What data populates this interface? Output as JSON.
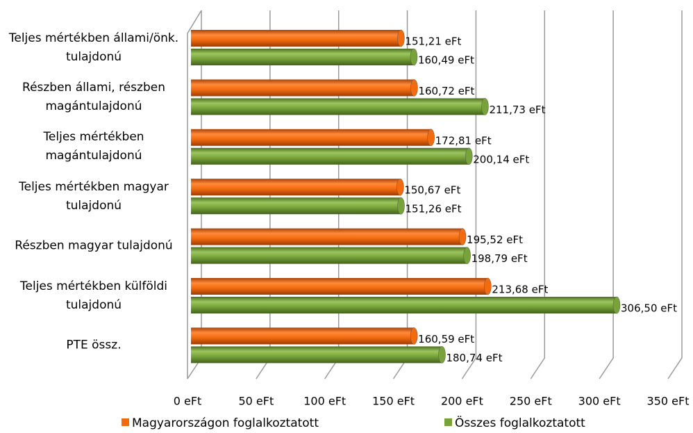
{
  "chart_data": {
    "type": "bar",
    "orientation": "horizontal",
    "categories": [
      "Teljes mértékben állami/önk. tulajdonú",
      "Részben állami, részben magántulajdonú",
      "Teljes mértékben magántulajdonú",
      "Teljes mértékben magyar tulajdonú",
      "Részben magyar tulajdonú",
      "Teljes mértékben külföldi tulajdonú",
      "PTE össz."
    ],
    "series": [
      {
        "name": "Magyarországon foglalkoztatott",
        "color": "#f26b0f",
        "values": [
          151.21,
          160.72,
          172.81,
          150.67,
          195.52,
          213.68,
          160.59
        ],
        "value_labels": [
          "151,21 eFt",
          "160,72 eFt",
          "172,81 eFt",
          "150,67 eFt",
          "195,52 eFt",
          "213,68 eFt",
          "160,59 eFt"
        ]
      },
      {
        "name": "Összes foglalkoztatott",
        "color": "#77a33a",
        "values": [
          160.49,
          211.73,
          200.14,
          151.26,
          198.79,
          306.5,
          180.74
        ],
        "value_labels": [
          "160,49 eFt",
          "211,73 eFt",
          "200,14 eFt",
          "151,26 eFt",
          "198,79 eFt",
          "306,50 eFt",
          "180,74 eFt"
        ]
      }
    ],
    "xlim": [
      0,
      350
    ],
    "xticks": [
      {
        "value": 0,
        "label": "0 eFt"
      },
      {
        "value": 50,
        "label": "50 eFt"
      },
      {
        "value": 100,
        "label": "100 eFt"
      },
      {
        "value": 150,
        "label": "150 eFt"
      },
      {
        "value": 200,
        "label": "200 eFt"
      },
      {
        "value": 250,
        "label": "250 eFt"
      },
      {
        "value": 300,
        "label": "300 eFt"
      },
      {
        "value": 350,
        "label": "350 eFt"
      }
    ],
    "grid": true,
    "legend": "bottom"
  }
}
